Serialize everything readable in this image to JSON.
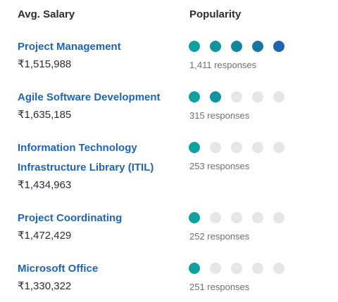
{
  "header": {
    "salary_label": "Avg. Salary",
    "popularity_label": "Popularity"
  },
  "colors": {
    "link": "#2064b4",
    "dot_empty": "#e6e6e6",
    "dot_scale": [
      "#11a0a0",
      "#12949e",
      "#14869c",
      "#17779f",
      "#1f63b0"
    ]
  },
  "rows": [
    {
      "skill": "Project Management",
      "salary": "₹1,515,988",
      "responses": "1,411 responses",
      "popularity": 5
    },
    {
      "skill": "Agile Software Development",
      "salary": "₹1,635,185",
      "responses": "315 responses",
      "popularity": 2
    },
    {
      "skill": "Information Technology Infrastructure Library (ITIL)",
      "salary": "₹1,434,963",
      "responses": "253 responses",
      "popularity": 1
    },
    {
      "skill": "Project Coordinating",
      "salary": "₹1,472,429",
      "responses": "252 responses",
      "popularity": 1
    },
    {
      "skill": "Microsoft Office",
      "salary": "₹1,330,322",
      "responses": "251 responses",
      "popularity": 1
    }
  ]
}
